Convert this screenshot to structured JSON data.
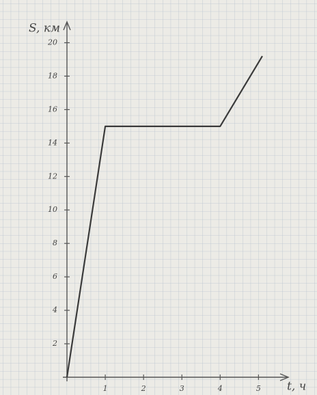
{
  "chart_data": {
    "type": "line",
    "x_label": "t, ч",
    "y_label": "S, км",
    "x": [
      0,
      1,
      4,
      5.1
    ],
    "values": [
      0,
      15,
      15,
      19.2
    ],
    "color": "#3a3a3a",
    "xlim": [
      0,
      5.6
    ],
    "xticks": [
      1,
      2,
      3,
      4,
      5
    ],
    "ylim": [
      0,
      21
    ],
    "yticks": [
      2,
      4,
      6,
      8,
      10,
      12,
      14,
      16,
      18,
      20
    ],
    "grid": true
  }
}
